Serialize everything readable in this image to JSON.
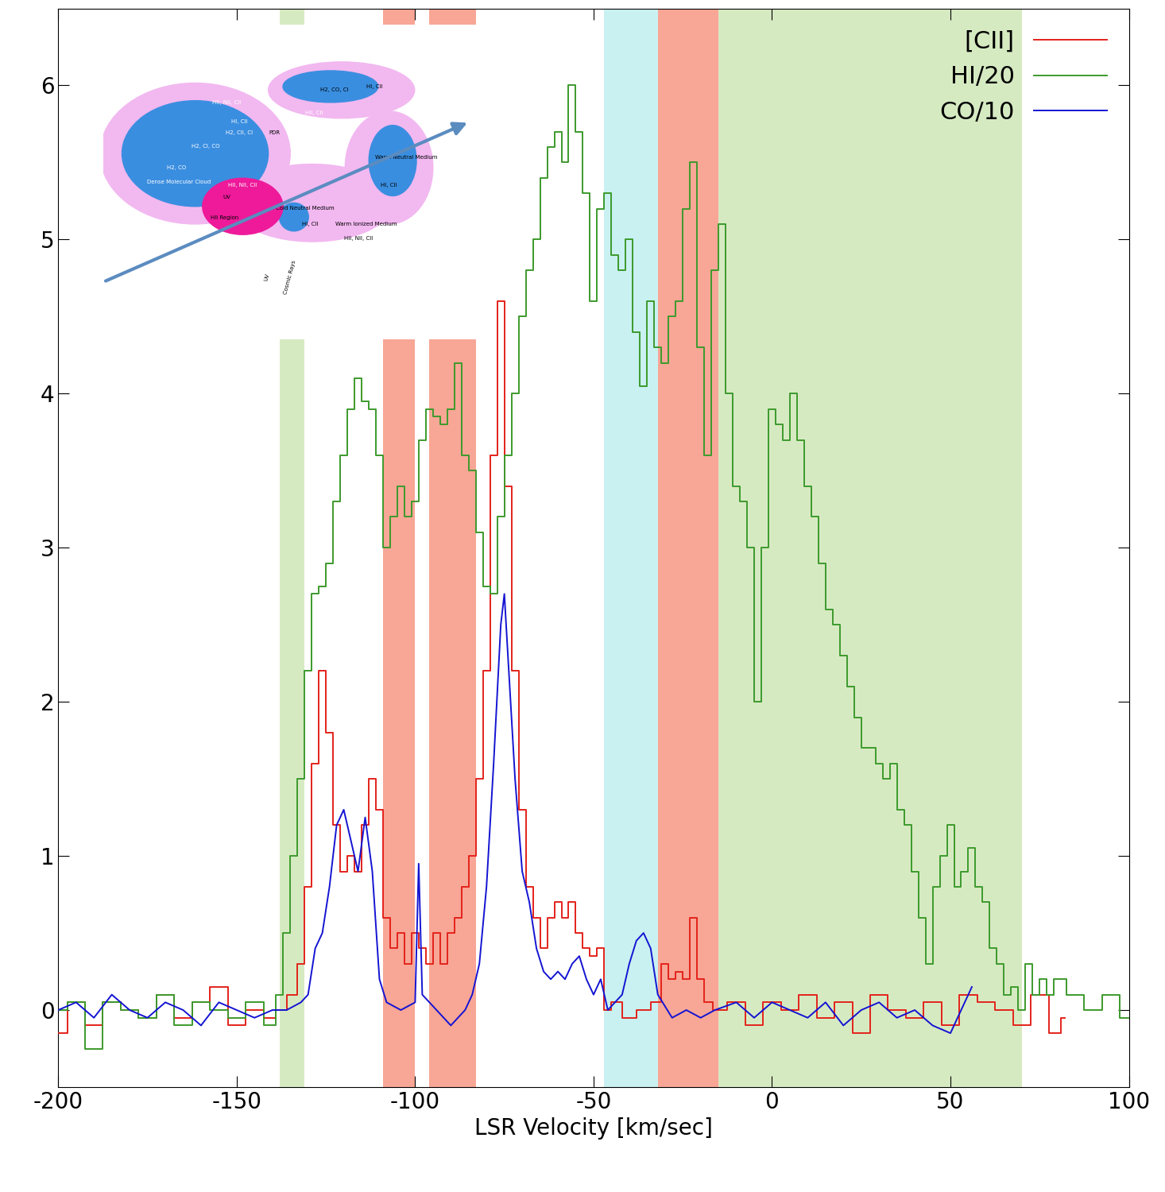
{
  "chart_data": {
    "type": "line",
    "x_label": "LSR Velocity [km/sec]",
    "xlim": [
      -200,
      100
    ],
    "xticks": [
      -200,
      -150,
      -100,
      -50,
      0,
      50,
      100
    ],
    "ylim": [
      -0.5,
      6.5
    ],
    "yticks": [
      0,
      1,
      2,
      3,
      4,
      5,
      6
    ],
    "legend": "upper right",
    "bands": [
      {
        "x": [
          -138,
          -131
        ],
        "top": 4.35,
        "color": "#d6eac2"
      },
      {
        "x": [
          -109,
          -100
        ],
        "top": 4.35,
        "color": "#f8a696"
      },
      {
        "x": [
          -96,
          -83
        ],
        "top": 4.35,
        "color": "#f8a696"
      },
      {
        "x": [
          -47,
          -32
        ],
        "top": 6.5,
        "color": "#c9f1f1"
      },
      {
        "x": [
          -32,
          -15
        ],
        "top": 6.5,
        "color": "#f8a696"
      },
      {
        "x": [
          -15,
          70
        ],
        "top": 6.5,
        "color": "#d6eac2"
      }
    ],
    "series": [
      {
        "name": "[CII]",
        "color": "#e3231b",
        "line_style": "steps",
        "x": [
          -200,
          -195,
          -190,
          -185,
          -180,
          -175,
          -170,
          -165,
          -160,
          -155,
          -150,
          -145,
          -140,
          -138,
          -134,
          -132,
          -130,
          -128,
          -126,
          -124,
          -122,
          -120,
          -118,
          -116,
          -114,
          -112,
          -110,
          -108,
          -106,
          -104,
          -102,
          -100,
          -98,
          -96,
          -94,
          -92,
          -90,
          -88,
          -86,
          -84,
          -82,
          -80,
          -78,
          -76,
          -74,
          -72,
          -70,
          -68,
          -66,
          -64,
          -62,
          -60,
          -58,
          -56,
          -54,
          -52,
          -50,
          -48,
          -46,
          -44,
          -40,
          -36,
          -32,
          -30,
          -28,
          -26,
          -24,
          -22,
          -20,
          -18,
          -15,
          -10,
          -5,
          0,
          5,
          10,
          15,
          20,
          25,
          30,
          35,
          40,
          45,
          50,
          55,
          60,
          65,
          70,
          75,
          80,
          82
        ],
        "values": [
          -0.15,
          0.05,
          -0.1,
          0.05,
          0.0,
          -0.05,
          0.1,
          -0.05,
          0.05,
          0.15,
          -0.1,
          0.0,
          -0.05,
          0.0,
          0.1,
          0.3,
          0.8,
          1.6,
          2.2,
          1.8,
          1.2,
          0.9,
          1.0,
          0.9,
          1.2,
          1.5,
          1.3,
          0.6,
          0.4,
          0.5,
          0.3,
          0.5,
          0.4,
          0.3,
          0.5,
          0.3,
          0.5,
          0.6,
          0.8,
          1.0,
          1.5,
          2.2,
          3.6,
          4.6,
          3.4,
          2.2,
          1.3,
          0.8,
          0.6,
          0.4,
          0.6,
          0.7,
          0.6,
          0.7,
          0.5,
          0.4,
          0.35,
          0.4,
          0.0,
          0.05,
          -0.05,
          0.0,
          0.05,
          0.3,
          0.2,
          0.25,
          0.2,
          0.6,
          0.2,
          0.05,
          0.0,
          0.05,
          -0.1,
          0.05,
          0.0,
          0.1,
          -0.05,
          0.05,
          -0.15,
          0.1,
          0.0,
          -0.05,
          0.05,
          -0.1,
          0.1,
          0.05,
          0.0,
          -0.1,
          0.1,
          -0.15,
          -0.05
        ]
      },
      {
        "name": "HI/20",
        "color": "#3c9a2c",
        "line_style": "steps",
        "x": [
          -200,
          -195,
          -190,
          -185,
          -180,
          -175,
          -170,
          -165,
          -160,
          -155,
          -150,
          -145,
          -140,
          -138,
          -136,
          -134,
          -132,
          -130,
          -128,
          -126,
          -124,
          -122,
          -120,
          -118,
          -116,
          -114,
          -112,
          -110,
          -108,
          -106,
          -104,
          -102,
          -100,
          -98,
          -96,
          -94,
          -92,
          -90,
          -88,
          -86,
          -84,
          -82,
          -80,
          -78,
          -76,
          -74,
          -72,
          -70,
          -68,
          -66,
          -64,
          -62,
          -60,
          -58,
          -56,
          -54,
          -52,
          -50,
          -48,
          -46,
          -44,
          -42,
          -40,
          -38,
          -36,
          -34,
          -32,
          -30,
          -28,
          -26,
          -24,
          -22,
          -20,
          -18,
          -16,
          -14,
          -12,
          -10,
          -8,
          -6,
          -4,
          -2,
          0,
          2,
          4,
          6,
          8,
          10,
          12,
          14,
          16,
          18,
          20,
          22,
          24,
          26,
          28,
          30,
          32,
          34,
          36,
          38,
          40,
          42,
          44,
          46,
          48,
          50,
          52,
          54,
          56,
          58,
          60,
          62,
          64,
          66,
          68,
          70,
          72,
          74,
          76,
          78,
          80,
          85,
          90,
          95,
          100
        ],
        "values": [
          0.0,
          0.05,
          -0.25,
          0.05,
          0.0,
          -0.05,
          0.1,
          -0.1,
          0.05,
          0.0,
          -0.05,
          0.05,
          -0.1,
          0.1,
          0.5,
          1.0,
          1.5,
          2.2,
          2.7,
          2.75,
          2.9,
          3.3,
          3.6,
          3.9,
          4.1,
          3.95,
          3.9,
          3.6,
          3.0,
          3.2,
          3.4,
          3.2,
          3.3,
          3.7,
          3.9,
          3.85,
          3.8,
          3.9,
          4.2,
          3.6,
          3.5,
          3.1,
          2.75,
          2.7,
          3.2,
          3.6,
          4.0,
          4.5,
          4.8,
          5.0,
          5.4,
          5.6,
          5.7,
          5.5,
          6.0,
          5.7,
          5.3,
          4.6,
          5.2,
          5.3,
          4.9,
          4.8,
          5.0,
          4.4,
          4.05,
          4.6,
          4.3,
          4.2,
          4.5,
          4.6,
          5.2,
          5.5,
          4.3,
          3.6,
          4.8,
          5.1,
          4.0,
          3.4,
          3.3,
          3.0,
          2.0,
          3.0,
          3.9,
          3.8,
          3.7,
          4.0,
          3.7,
          3.4,
          3.2,
          2.9,
          2.6,
          2.5,
          2.3,
          2.1,
          1.9,
          1.7,
          1.7,
          1.6,
          1.5,
          1.6,
          1.3,
          1.2,
          0.9,
          0.6,
          0.3,
          0.8,
          1.0,
          1.2,
          0.8,
          0.9,
          1.05,
          0.8,
          0.7,
          0.4,
          0.3,
          0.1,
          0.15,
          0.0,
          0.3,
          0.1,
          0.2,
          0.1,
          0.2,
          0.1,
          0.0,
          0.1,
          -0.05
        ]
      },
      {
        "name": "CO/10",
        "color": "#1414d2",
        "line_style": "solid",
        "x": [
          -200,
          -195,
          -190,
          -185,
          -180,
          -175,
          -170,
          -165,
          -160,
          -155,
          -150,
          -145,
          -140,
          -136,
          -132,
          -130,
          -128,
          -126,
          -124,
          -122,
          -120,
          -118,
          -116,
          -114,
          -112,
          -110,
          -108,
          -104,
          -100,
          -99,
          -98,
          -94,
          -90,
          -86,
          -84,
          -82,
          -80,
          -78,
          -76,
          -75,
          -74,
          -72,
          -70,
          -68,
          -66,
          -64,
          -62,
          -60,
          -58,
          -56,
          -54,
          -52,
          -50,
          -48,
          -46,
          -42,
          -40,
          -38,
          -36,
          -34,
          -32,
          -28,
          -24,
          -20,
          -16,
          -10,
          -5,
          0,
          5,
          10,
          15,
          20,
          25,
          30,
          35,
          40,
          45,
          50,
          56
        ],
        "values": [
          0.0,
          0.05,
          -0.05,
          0.1,
          0.0,
          -0.05,
          0.05,
          0.0,
          -0.1,
          0.05,
          0.0,
          -0.05,
          0.0,
          0.0,
          0.05,
          0.1,
          0.4,
          0.5,
          0.8,
          1.2,
          1.3,
          1.1,
          0.9,
          1.25,
          0.9,
          0.2,
          0.05,
          0.0,
          0.05,
          0.95,
          0.1,
          0.0,
          -0.1,
          0.0,
          0.1,
          0.3,
          0.8,
          1.6,
          2.5,
          2.7,
          2.3,
          1.5,
          0.9,
          0.7,
          0.4,
          0.25,
          0.2,
          0.25,
          0.2,
          0.3,
          0.35,
          0.2,
          0.1,
          0.2,
          0.0,
          0.1,
          0.3,
          0.45,
          0.5,
          0.4,
          0.1,
          -0.05,
          0.0,
          -0.05,
          0.0,
          0.05,
          -0.05,
          0.05,
          0.0,
          -0.05,
          0.05,
          -0.1,
          0.0,
          0.05,
          -0.05,
          0.0,
          -0.1,
          -0.15,
          0.15
        ]
      }
    ],
    "inset": {
      "labels": [
        "HII, NII, CII",
        "HI, CII",
        "H2, CII, CI",
        "PDR",
        "H2, CI, CO",
        "H2, CO",
        "Dense Molecular Cloud",
        "HII, NII, CII",
        "UV",
        "HII Region",
        "Cold Neutral Medium",
        "HI, CII",
        "Warm Ionized Medium",
        "HII, NII, CII",
        "H2, CO, CI",
        "HI, CII",
        "HII, CII",
        "Warm Neutral Medium",
        "HI, CII",
        "UV",
        "Cosmic Rays"
      ]
    }
  }
}
